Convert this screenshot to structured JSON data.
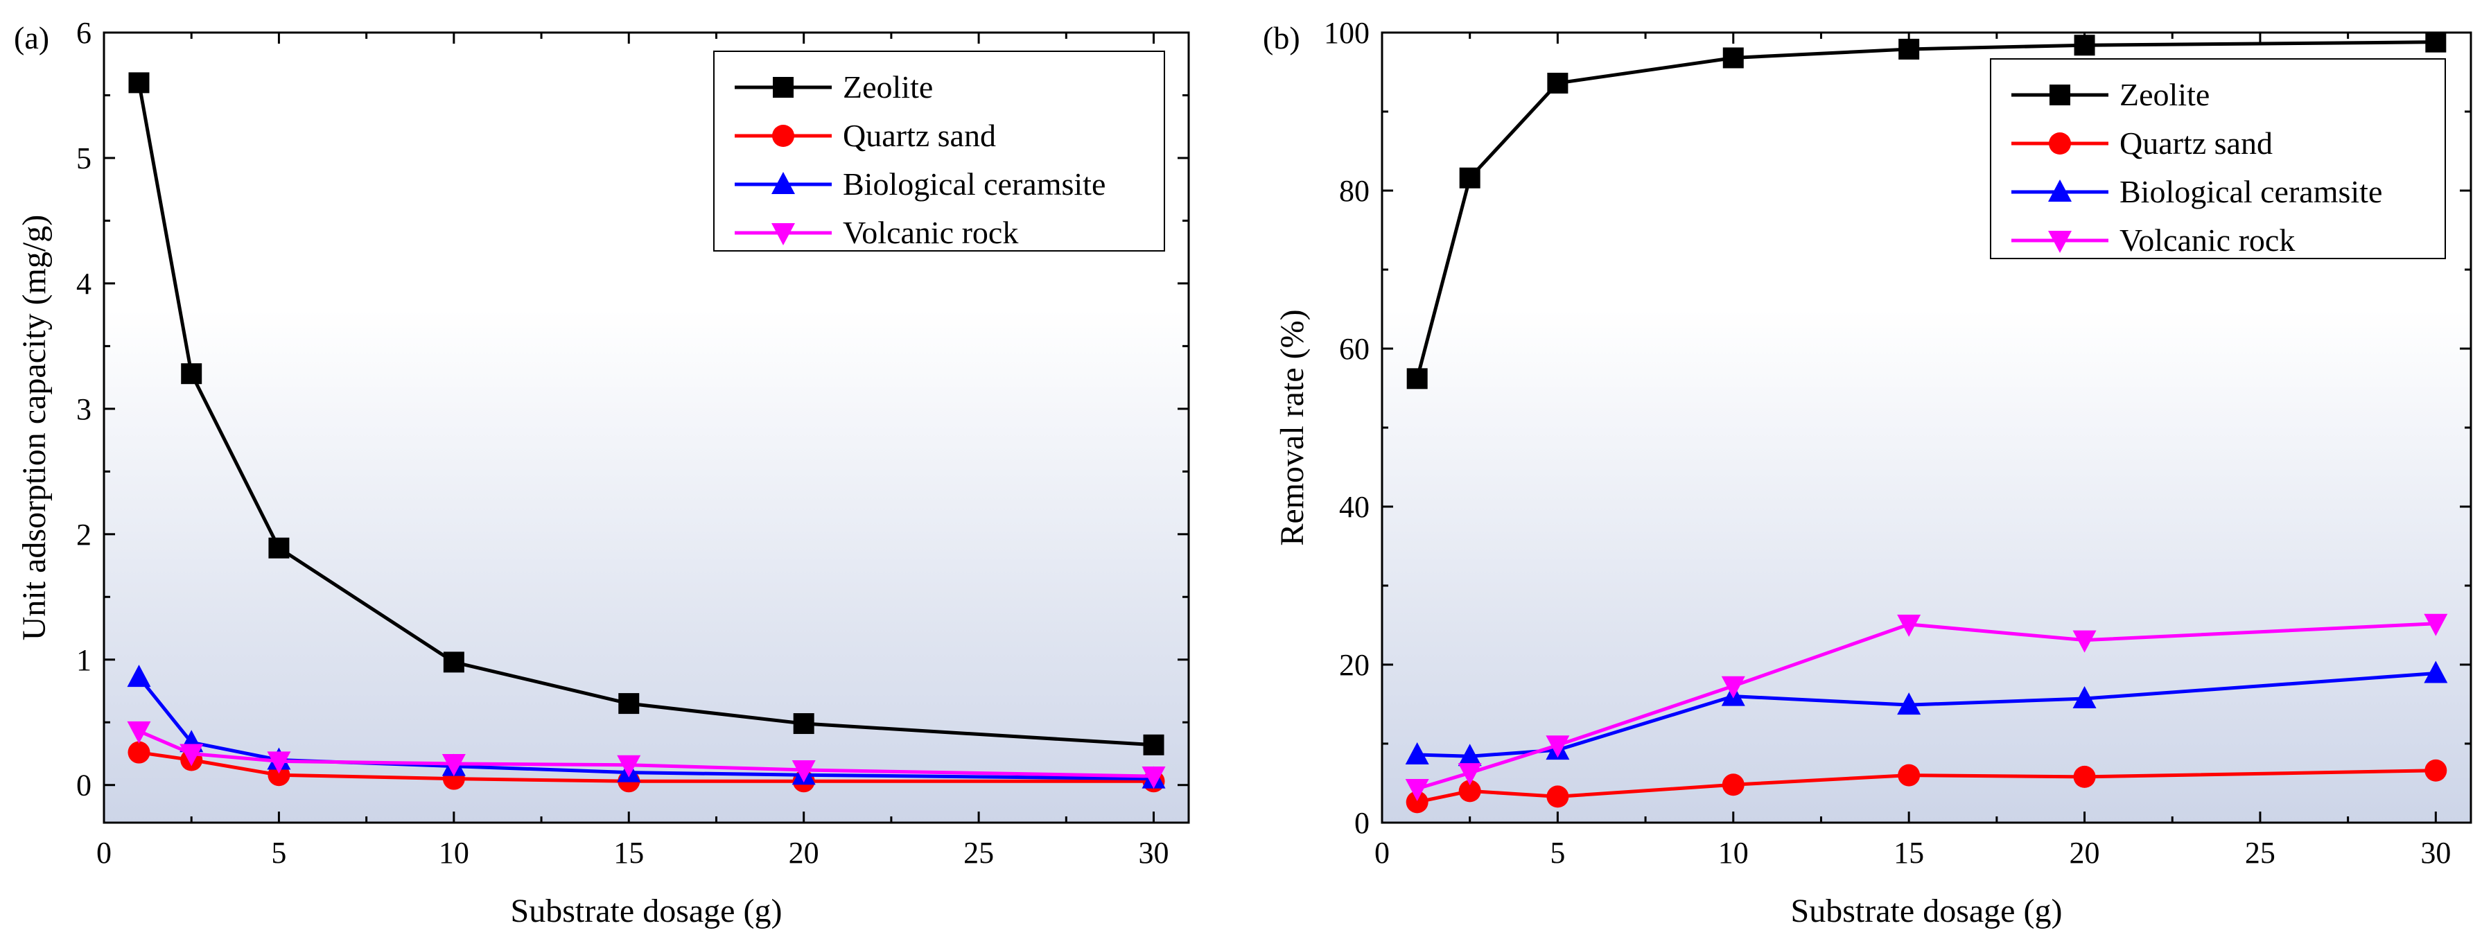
{
  "chart_data": [
    {
      "type": "line",
      "panel_label": "(a)",
      "xlabel": "Substrate dosage (g)",
      "ylabel": "Unit adsorption capacity (mg/g)",
      "xlim": [
        0,
        31
      ],
      "ylim": [
        -0.3,
        6
      ],
      "xticks": [
        0,
        5,
        10,
        15,
        20,
        25,
        30
      ],
      "yticks": [
        0,
        1,
        2,
        3,
        4,
        5,
        6
      ],
      "legend_position": "top-right",
      "series": [
        {
          "name": "Zeolite",
          "color": "#000000",
          "marker": "square",
          "x": [
            1,
            2.5,
            5,
            10,
            15,
            20,
            30
          ],
          "y": [
            5.6,
            3.28,
            1.89,
            0.98,
            0.65,
            0.49,
            0.32
          ]
        },
        {
          "name": "Quartz sand",
          "color": "#ff0000",
          "marker": "circle",
          "x": [
            1,
            2.5,
            5,
            10,
            15,
            20,
            30
          ],
          "y": [
            0.26,
            0.2,
            0.08,
            0.05,
            0.03,
            0.03,
            0.03
          ]
        },
        {
          "name": "Biological ceramsite",
          "color": "#0000ff",
          "marker": "triangle-up",
          "x": [
            1,
            2.5,
            5,
            10,
            15,
            20,
            30
          ],
          "y": [
            0.86,
            0.34,
            0.2,
            0.15,
            0.1,
            0.08,
            0.05
          ]
        },
        {
          "name": "Volcanic rock",
          "color": "#ff00ff",
          "marker": "triangle-down",
          "x": [
            1,
            2.5,
            5,
            10,
            15,
            20,
            30
          ],
          "y": [
            0.43,
            0.25,
            0.19,
            0.17,
            0.16,
            0.12,
            0.07
          ]
        }
      ]
    },
    {
      "type": "line",
      "panel_label": "(b)",
      "xlabel": "Substrate dosage (g)",
      "ylabel": "Removal rate (%)",
      "xlim": [
        0,
        31
      ],
      "ylim": [
        0,
        100
      ],
      "xticks": [
        0,
        5,
        10,
        15,
        20,
        25,
        30
      ],
      "yticks": [
        0,
        20,
        40,
        60,
        80,
        100
      ],
      "legend_position": "top-right",
      "series": [
        {
          "name": "Zeolite",
          "color": "#000000",
          "marker": "square",
          "x": [
            1,
            2.5,
            5,
            10,
            15,
            20,
            30
          ],
          "y": [
            56.2,
            81.6,
            93.6,
            96.8,
            97.9,
            98.4,
            98.8
          ]
        },
        {
          "name": "Quartz sand",
          "color": "#ff0000",
          "marker": "circle",
          "x": [
            1,
            2.5,
            5,
            10,
            15,
            20,
            30
          ],
          "y": [
            2.6,
            4.0,
            3.3,
            4.8,
            6.0,
            5.8,
            6.6
          ]
        },
        {
          "name": "Biological ceramsite",
          "color": "#0000ff",
          "marker": "triangle-up",
          "x": [
            1,
            2.5,
            5,
            10,
            15,
            20,
            30
          ],
          "y": [
            8.6,
            8.4,
            9.2,
            16.0,
            14.9,
            15.7,
            18.9
          ]
        },
        {
          "name": "Volcanic rock",
          "color": "#ff00ff",
          "marker": "triangle-down",
          "x": [
            1,
            2.5,
            5,
            10,
            15,
            20,
            30
          ],
          "y": [
            4.3,
            6.3,
            9.8,
            17.3,
            25.1,
            23.1,
            25.2
          ]
        }
      ]
    }
  ]
}
